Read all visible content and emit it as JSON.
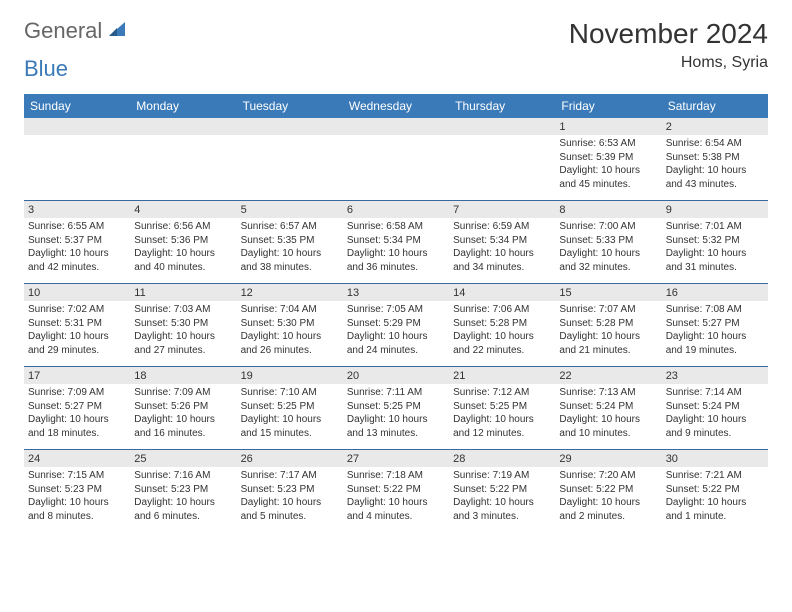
{
  "logo": {
    "text1": "General",
    "text2": "Blue"
  },
  "title": "November 2024",
  "location": "Homs, Syria",
  "colors": {
    "header_bg": "#3a7ab8",
    "header_text": "#ffffff",
    "daybar_bg": "#e9e9e9",
    "body_text": "#333333",
    "week_divider": "#3a6a9a",
    "logo_gray": "#666666",
    "logo_blue": "#3a7ab8"
  },
  "fonts": {
    "title_size": 28,
    "subtitle_size": 16,
    "dayheader_size": 12,
    "daynum_size": 11,
    "cell_size": 10
  },
  "day_names": [
    "Sunday",
    "Monday",
    "Tuesday",
    "Wednesday",
    "Thursday",
    "Friday",
    "Saturday"
  ],
  "weeks": [
    [
      null,
      null,
      null,
      null,
      null,
      {
        "n": "1",
        "sunrise": "Sunrise: 6:53 AM",
        "sunset": "Sunset: 5:39 PM",
        "daylight": "Daylight: 10 hours and 45 minutes."
      },
      {
        "n": "2",
        "sunrise": "Sunrise: 6:54 AM",
        "sunset": "Sunset: 5:38 PM",
        "daylight": "Daylight: 10 hours and 43 minutes."
      }
    ],
    [
      {
        "n": "3",
        "sunrise": "Sunrise: 6:55 AM",
        "sunset": "Sunset: 5:37 PM",
        "daylight": "Daylight: 10 hours and 42 minutes."
      },
      {
        "n": "4",
        "sunrise": "Sunrise: 6:56 AM",
        "sunset": "Sunset: 5:36 PM",
        "daylight": "Daylight: 10 hours and 40 minutes."
      },
      {
        "n": "5",
        "sunrise": "Sunrise: 6:57 AM",
        "sunset": "Sunset: 5:35 PM",
        "daylight": "Daylight: 10 hours and 38 minutes."
      },
      {
        "n": "6",
        "sunrise": "Sunrise: 6:58 AM",
        "sunset": "Sunset: 5:34 PM",
        "daylight": "Daylight: 10 hours and 36 minutes."
      },
      {
        "n": "7",
        "sunrise": "Sunrise: 6:59 AM",
        "sunset": "Sunset: 5:34 PM",
        "daylight": "Daylight: 10 hours and 34 minutes."
      },
      {
        "n": "8",
        "sunrise": "Sunrise: 7:00 AM",
        "sunset": "Sunset: 5:33 PM",
        "daylight": "Daylight: 10 hours and 32 minutes."
      },
      {
        "n": "9",
        "sunrise": "Sunrise: 7:01 AM",
        "sunset": "Sunset: 5:32 PM",
        "daylight": "Daylight: 10 hours and 31 minutes."
      }
    ],
    [
      {
        "n": "10",
        "sunrise": "Sunrise: 7:02 AM",
        "sunset": "Sunset: 5:31 PM",
        "daylight": "Daylight: 10 hours and 29 minutes."
      },
      {
        "n": "11",
        "sunrise": "Sunrise: 7:03 AM",
        "sunset": "Sunset: 5:30 PM",
        "daylight": "Daylight: 10 hours and 27 minutes."
      },
      {
        "n": "12",
        "sunrise": "Sunrise: 7:04 AM",
        "sunset": "Sunset: 5:30 PM",
        "daylight": "Daylight: 10 hours and 26 minutes."
      },
      {
        "n": "13",
        "sunrise": "Sunrise: 7:05 AM",
        "sunset": "Sunset: 5:29 PM",
        "daylight": "Daylight: 10 hours and 24 minutes."
      },
      {
        "n": "14",
        "sunrise": "Sunrise: 7:06 AM",
        "sunset": "Sunset: 5:28 PM",
        "daylight": "Daylight: 10 hours and 22 minutes."
      },
      {
        "n": "15",
        "sunrise": "Sunrise: 7:07 AM",
        "sunset": "Sunset: 5:28 PM",
        "daylight": "Daylight: 10 hours and 21 minutes."
      },
      {
        "n": "16",
        "sunrise": "Sunrise: 7:08 AM",
        "sunset": "Sunset: 5:27 PM",
        "daylight": "Daylight: 10 hours and 19 minutes."
      }
    ],
    [
      {
        "n": "17",
        "sunrise": "Sunrise: 7:09 AM",
        "sunset": "Sunset: 5:27 PM",
        "daylight": "Daylight: 10 hours and 18 minutes."
      },
      {
        "n": "18",
        "sunrise": "Sunrise: 7:09 AM",
        "sunset": "Sunset: 5:26 PM",
        "daylight": "Daylight: 10 hours and 16 minutes."
      },
      {
        "n": "19",
        "sunrise": "Sunrise: 7:10 AM",
        "sunset": "Sunset: 5:25 PM",
        "daylight": "Daylight: 10 hours and 15 minutes."
      },
      {
        "n": "20",
        "sunrise": "Sunrise: 7:11 AM",
        "sunset": "Sunset: 5:25 PM",
        "daylight": "Daylight: 10 hours and 13 minutes."
      },
      {
        "n": "21",
        "sunrise": "Sunrise: 7:12 AM",
        "sunset": "Sunset: 5:25 PM",
        "daylight": "Daylight: 10 hours and 12 minutes."
      },
      {
        "n": "22",
        "sunrise": "Sunrise: 7:13 AM",
        "sunset": "Sunset: 5:24 PM",
        "daylight": "Daylight: 10 hours and 10 minutes."
      },
      {
        "n": "23",
        "sunrise": "Sunrise: 7:14 AM",
        "sunset": "Sunset: 5:24 PM",
        "daylight": "Daylight: 10 hours and 9 minutes."
      }
    ],
    [
      {
        "n": "24",
        "sunrise": "Sunrise: 7:15 AM",
        "sunset": "Sunset: 5:23 PM",
        "daylight": "Daylight: 10 hours and 8 minutes."
      },
      {
        "n": "25",
        "sunrise": "Sunrise: 7:16 AM",
        "sunset": "Sunset: 5:23 PM",
        "daylight": "Daylight: 10 hours and 6 minutes."
      },
      {
        "n": "26",
        "sunrise": "Sunrise: 7:17 AM",
        "sunset": "Sunset: 5:23 PM",
        "daylight": "Daylight: 10 hours and 5 minutes."
      },
      {
        "n": "27",
        "sunrise": "Sunrise: 7:18 AM",
        "sunset": "Sunset: 5:22 PM",
        "daylight": "Daylight: 10 hours and 4 minutes."
      },
      {
        "n": "28",
        "sunrise": "Sunrise: 7:19 AM",
        "sunset": "Sunset: 5:22 PM",
        "daylight": "Daylight: 10 hours and 3 minutes."
      },
      {
        "n": "29",
        "sunrise": "Sunrise: 7:20 AM",
        "sunset": "Sunset: 5:22 PM",
        "daylight": "Daylight: 10 hours and 2 minutes."
      },
      {
        "n": "30",
        "sunrise": "Sunrise: 7:21 AM",
        "sunset": "Sunset: 5:22 PM",
        "daylight": "Daylight: 10 hours and 1 minute."
      }
    ]
  ]
}
